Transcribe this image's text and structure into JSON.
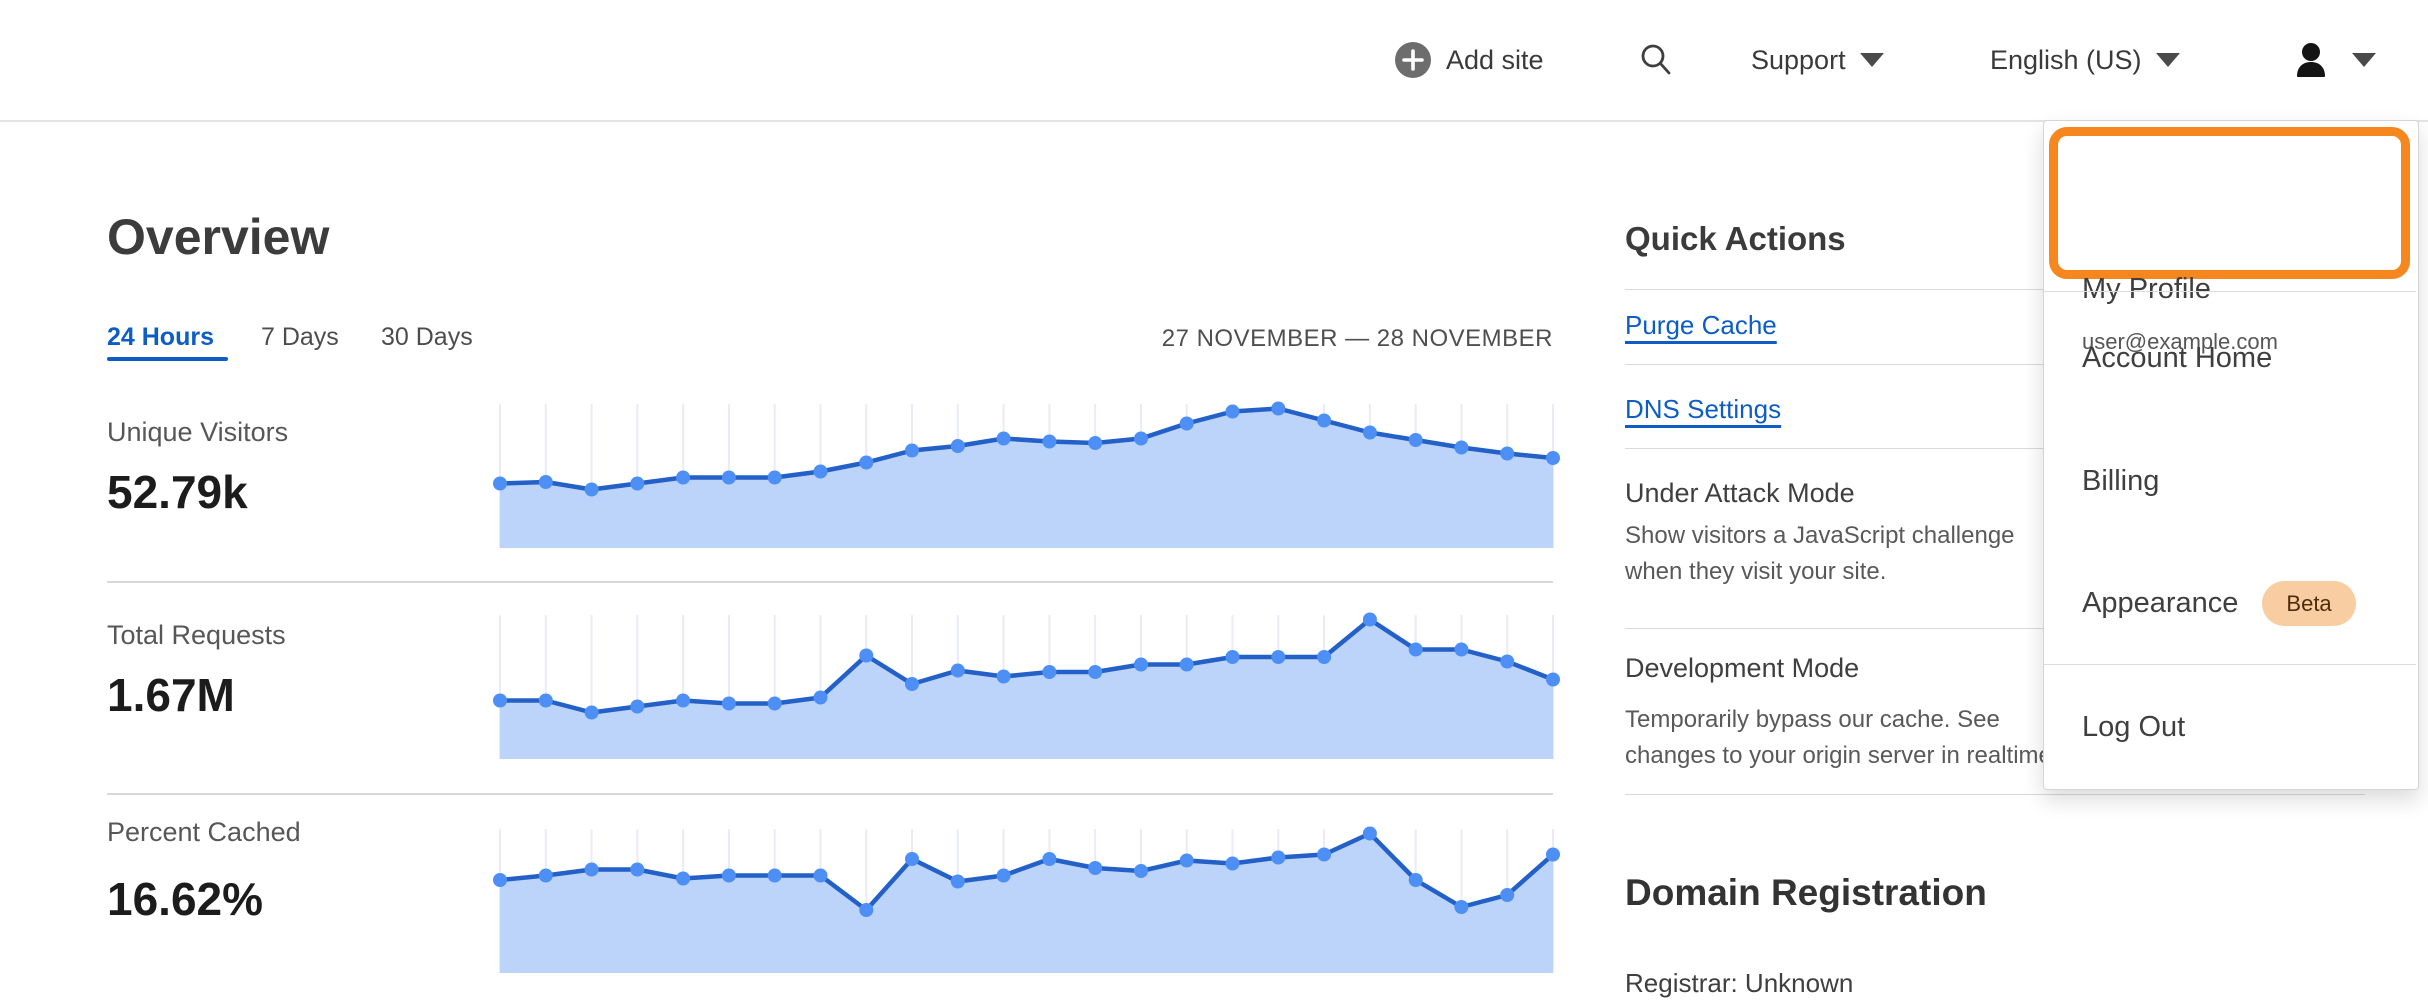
{
  "header": {
    "add_site_label": "Add site",
    "support_label": "Support",
    "language_label": "English (US)",
    "icons": [
      "plus-circle-icon",
      "search-icon",
      "caret-down-icon",
      "user-icon"
    ]
  },
  "page": {
    "title": "Overview",
    "tabs": [
      {
        "label": "24 Hours",
        "active": true
      },
      {
        "label": "7 Days",
        "active": false
      },
      {
        "label": "30 Days",
        "active": false
      }
    ],
    "date_range": "27 NOVEMBER — 28 NOVEMBER"
  },
  "stats": [
    {
      "label": "Unique Visitors",
      "value": "52.79k",
      "points": [
        43,
        44,
        39,
        43,
        47,
        47,
        47,
        51,
        57,
        65,
        68,
        73,
        71,
        70,
        73,
        83,
        91,
        93,
        85,
        77,
        72,
        67,
        63,
        60
      ]
    },
    {
      "label": "Total Requests",
      "value": "1.67M",
      "points": [
        39,
        39,
        31,
        35,
        39,
        37,
        37,
        41,
        69,
        50,
        59,
        55,
        58,
        58,
        63,
        63,
        68,
        68,
        68,
        93,
        73,
        73,
        65,
        53
      ]
    },
    {
      "label": "Percent Cached",
      "value": "16.62%",
      "points": [
        62,
        65,
        69,
        69,
        63,
        65,
        65,
        65,
        42,
        76,
        61,
        65,
        76,
        70,
        68,
        75,
        73,
        77,
        79,
        93,
        62,
        44,
        52,
        79
      ]
    }
  ],
  "chart_data": [
    {
      "type": "area",
      "title": "Unique Visitors (24 Hours)",
      "x_range": "27 November – 28 November",
      "values_relative_pct": [
        43,
        44,
        39,
        43,
        47,
        47,
        47,
        51,
        57,
        65,
        68,
        73,
        71,
        70,
        73,
        83,
        91,
        93,
        85,
        77,
        72,
        67,
        63,
        60
      ],
      "total": "52.79k",
      "grid": "vertical-only",
      "legend": "none"
    },
    {
      "type": "area",
      "title": "Total Requests (24 Hours)",
      "x_range": "27 November – 28 November",
      "values_relative_pct": [
        39,
        39,
        31,
        35,
        39,
        37,
        37,
        41,
        69,
        50,
        59,
        55,
        58,
        58,
        63,
        63,
        68,
        68,
        68,
        93,
        73,
        73,
        65,
        53
      ],
      "total": "1.67M",
      "grid": "vertical-only",
      "legend": "none"
    },
    {
      "type": "area",
      "title": "Percent Cached (24 Hours)",
      "x_range": "27 November – 28 November",
      "values_relative_pct": [
        62,
        65,
        69,
        69,
        63,
        65,
        65,
        65,
        42,
        76,
        61,
        65,
        76,
        70,
        68,
        75,
        73,
        77,
        79,
        93,
        62,
        44,
        52,
        79
      ],
      "total": "16.62%",
      "grid": "vertical-only",
      "legend": "none"
    }
  ],
  "quick_actions": {
    "title": "Quick Actions",
    "links": [
      {
        "label": "Purge Cache"
      },
      {
        "label": "DNS Settings"
      }
    ],
    "toggles": [
      {
        "label": "Under Attack Mode",
        "desc_lines": [
          "Show visitors a JavaScript challenge",
          "when they visit your site."
        ]
      },
      {
        "label": "Development Mode",
        "desc_lines": [
          "Temporarily bypass our cache. See",
          "changes to your origin server in realtime."
        ]
      }
    ]
  },
  "domain_registration": {
    "title": "Domain Registration",
    "registrar": "Registrar: Unknown"
  },
  "menu": {
    "profile": {
      "label": "My Profile",
      "email": "user@example.com"
    },
    "items": [
      {
        "label": "Account Home"
      },
      {
        "label": "Billing"
      },
      {
        "label": "Appearance",
        "badge": "Beta"
      },
      {
        "label": "Log Out"
      }
    ],
    "annotation": "orange highlight around My Profile item"
  },
  "colors": {
    "accent_blue": "#0d5dc5",
    "chart_line": "#2360c8",
    "chart_dot": "#4d8ff5",
    "chart_fill": "#bcd4f9",
    "chart_grid": "#e9ecf4",
    "highlight_orange": "#f6871f",
    "beta_bg": "#f8cda2",
    "beta_text": "#4e2d0e",
    "divider": "#d9d9d9"
  }
}
